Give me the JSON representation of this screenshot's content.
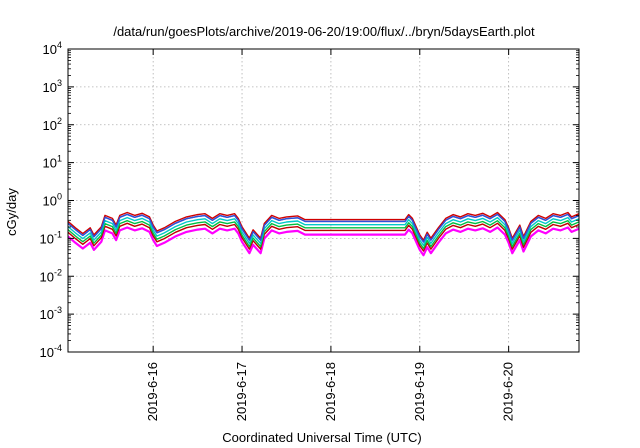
{
  "chart_data": {
    "type": "line",
    "title": "/data/run/goesPlots/archive/2019-06-20/19:00/flux/../bryn/5daysEarth.plot",
    "xlabel": "Coordinated Universal Time (UTC)",
    "ylabel": "cGy/day",
    "yscale": "log",
    "ylim_exp": [
      -4,
      4
    ],
    "y_ticks": [
      {
        "base": "10",
        "exp": "-4"
      },
      {
        "base": "10",
        "exp": "-3"
      },
      {
        "base": "10",
        "exp": "-2"
      },
      {
        "base": "10",
        "exp": "-1"
      },
      {
        "base": "10",
        "exp": "0"
      },
      {
        "base": "10",
        "exp": "1"
      },
      {
        "base": "10",
        "exp": "2"
      },
      {
        "base": "10",
        "exp": "3"
      },
      {
        "base": "10",
        "exp": "4"
      }
    ],
    "xlim": [
      "2019-06-15 01:00",
      "2019-06-20 19:00"
    ],
    "x_ticks": [
      {
        "at": "2019-06-16 00:00",
        "label": "2019-6-16"
      },
      {
        "at": "2019-06-17 00:00",
        "label": "2019-6-17"
      },
      {
        "at": "2019-06-18 00:00",
        "label": "2019-6-18"
      },
      {
        "at": "2019-06-19 00:00",
        "label": "2019-6-19"
      },
      {
        "at": "2019-06-20 00:00",
        "label": "2019-6-20"
      }
    ],
    "grid": true,
    "series_colors": [
      "#ff00ff",
      "#c00000",
      "#00c040",
      "#00c8c8",
      "#4060c0",
      "#d00000",
      "#3050d8"
    ],
    "series_factors": [
      0.45,
      0.58,
      0.68,
      0.82,
      1.0,
      1.12,
      1.0
    ],
    "envelope": [
      [
        "2019-06-15 01:00",
        0.25
      ],
      [
        "2019-06-15 03:00",
        0.17
      ],
      [
        "2019-06-15 05:00",
        0.12
      ],
      [
        "2019-06-15 07:00",
        0.17
      ],
      [
        "2019-06-15 08:00",
        0.11
      ],
      [
        "2019-06-15 10:00",
        0.18
      ],
      [
        "2019-06-15 11:00",
        0.36
      ],
      [
        "2019-06-15 13:00",
        0.3
      ],
      [
        "2019-06-15 14:00",
        0.2
      ],
      [
        "2019-06-15 15:00",
        0.36
      ],
      [
        "2019-06-15 17:00",
        0.43
      ],
      [
        "2019-06-15 19:00",
        0.36
      ],
      [
        "2019-06-15 21:00",
        0.41
      ],
      [
        "2019-06-15 23:00",
        0.33
      ],
      [
        "2019-06-16 00:00",
        0.2
      ],
      [
        "2019-06-16 01:00",
        0.14
      ],
      [
        "2019-06-16 03:00",
        0.17
      ],
      [
        "2019-06-16 06:00",
        0.25
      ],
      [
        "2019-06-16 09:00",
        0.33
      ],
      [
        "2019-06-16 12:00",
        0.38
      ],
      [
        "2019-06-16 14:00",
        0.4
      ],
      [
        "2019-06-16 16:00",
        0.3
      ],
      [
        "2019-06-16 18:00",
        0.4
      ],
      [
        "2019-06-16 20:00",
        0.36
      ],
      [
        "2019-06-16 22:00",
        0.4
      ],
      [
        "2019-06-16 23:00",
        0.3
      ],
      [
        "2019-06-17 00:00",
        0.18
      ],
      [
        "2019-06-17 02:00",
        0.09
      ],
      [
        "2019-06-17 03:00",
        0.15
      ],
      [
        "2019-06-17 05:00",
        0.09
      ],
      [
        "2019-06-17 06:00",
        0.22
      ],
      [
        "2019-06-17 08:00",
        0.36
      ],
      [
        "2019-06-17 10:00",
        0.3
      ],
      [
        "2019-06-17 12:00",
        0.33
      ],
      [
        "2019-06-17 15:00",
        0.35
      ],
      [
        "2019-06-17 17:00",
        0.28
      ],
      [
        "2019-06-18 00:00",
        0.28
      ],
      [
        "2019-06-18 12:00",
        0.28
      ],
      [
        "2019-06-18 20:00",
        0.28
      ],
      [
        "2019-06-18 21:00",
        0.38
      ],
      [
        "2019-06-18 22:00",
        0.3
      ],
      [
        "2019-06-19 00:00",
        0.11
      ],
      [
        "2019-06-19 01:00",
        0.08
      ],
      [
        "2019-06-19 02:00",
        0.13
      ],
      [
        "2019-06-19 03:00",
        0.09
      ],
      [
        "2019-06-19 05:00",
        0.17
      ],
      [
        "2019-06-19 07:00",
        0.3
      ],
      [
        "2019-06-19 09:00",
        0.38
      ],
      [
        "2019-06-19 11:00",
        0.33
      ],
      [
        "2019-06-19 13:00",
        0.4
      ],
      [
        "2019-06-19 15:00",
        0.36
      ],
      [
        "2019-06-19 17:00",
        0.41
      ],
      [
        "2019-06-19 19:00",
        0.33
      ],
      [
        "2019-06-19 21:00",
        0.43
      ],
      [
        "2019-06-19 23:00",
        0.28
      ],
      [
        "2019-06-20 00:00",
        0.17
      ],
      [
        "2019-06-20 01:00",
        0.09
      ],
      [
        "2019-06-20 03:00",
        0.2
      ],
      [
        "2019-06-20 04:00",
        0.1
      ],
      [
        "2019-06-20 06:00",
        0.25
      ],
      [
        "2019-06-20 08:00",
        0.36
      ],
      [
        "2019-06-20 10:00",
        0.3
      ],
      [
        "2019-06-20 12:00",
        0.4
      ],
      [
        "2019-06-20 14:00",
        0.36
      ],
      [
        "2019-06-20 16:00",
        0.43
      ],
      [
        "2019-06-20 17:00",
        0.33
      ],
      [
        "2019-06-20 19:00",
        0.4
      ]
    ]
  }
}
